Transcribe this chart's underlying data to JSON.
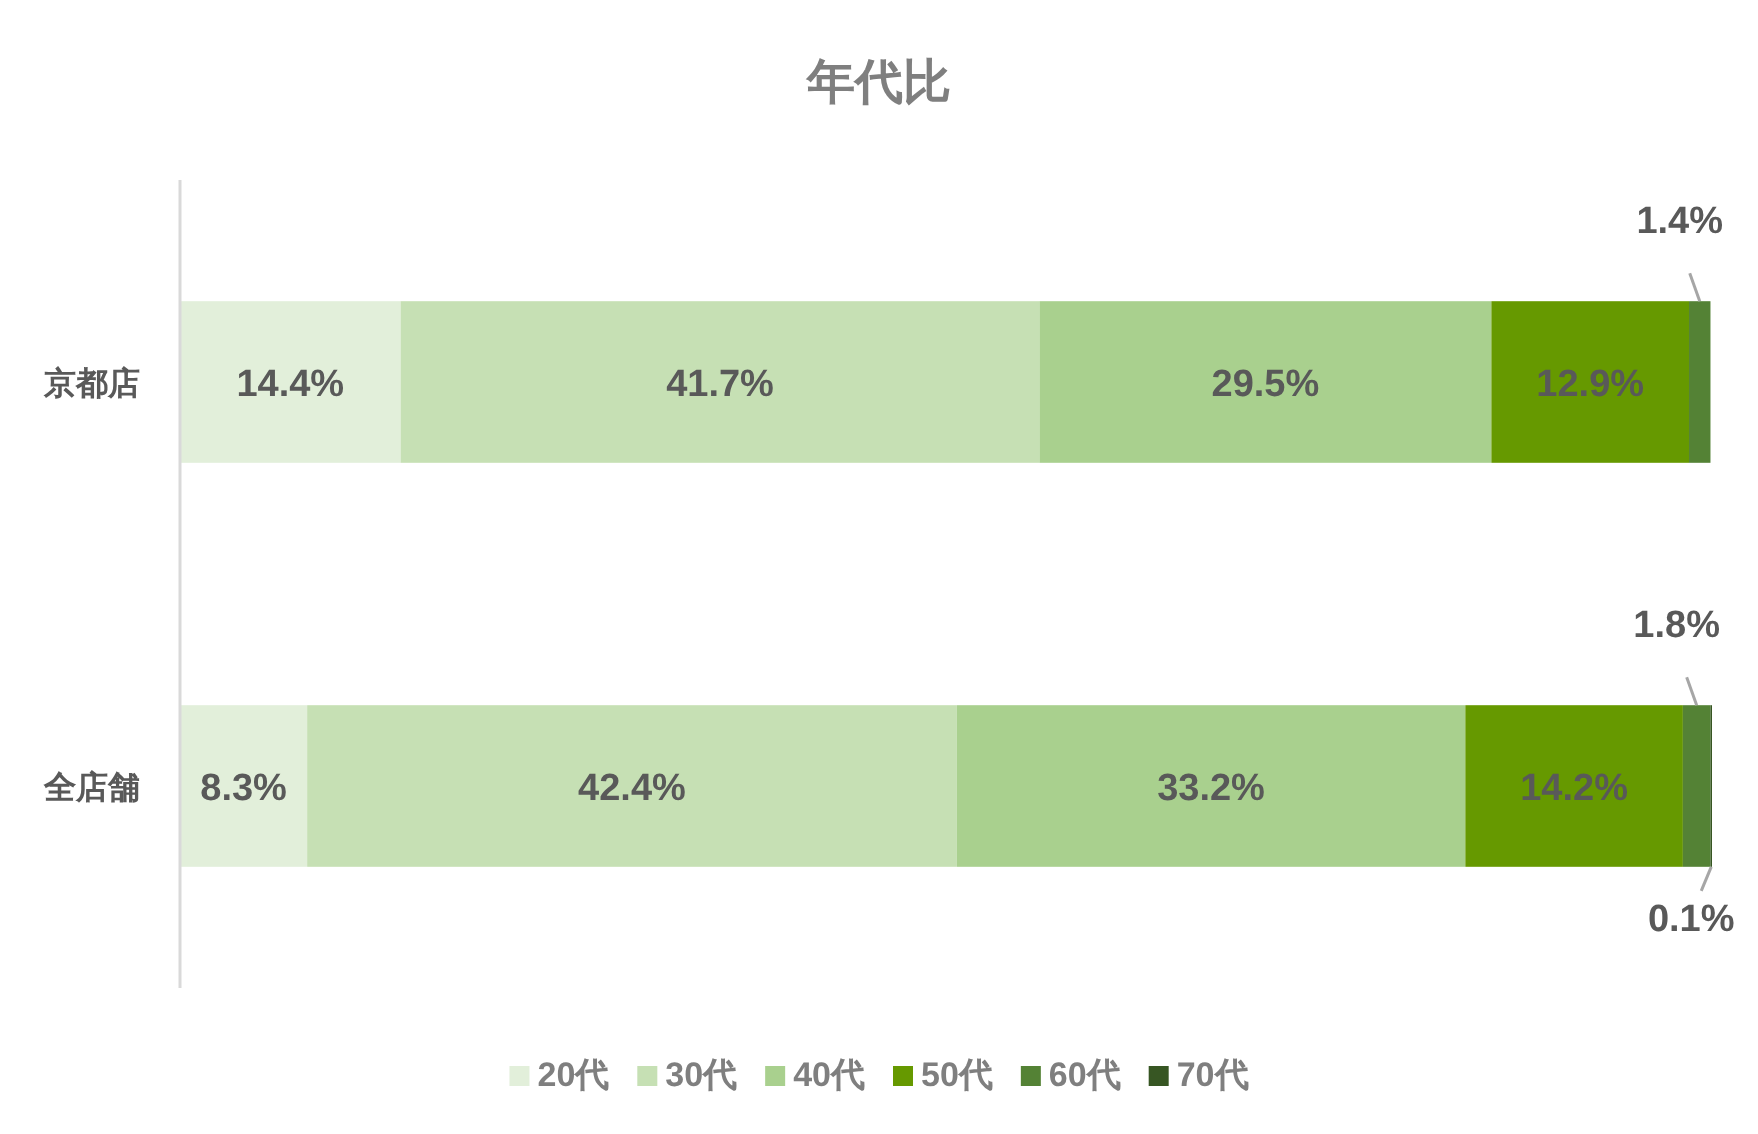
{
  "chart_data": {
    "type": "bar",
    "orientation": "horizontal",
    "stacked": true,
    "title": "年代比",
    "categories": [
      "京都店",
      "全店舗"
    ],
    "series": [
      {
        "name": "20代",
        "color": "#e2efda",
        "values": [
          14.4,
          8.3
        ],
        "value_labels": [
          "14.4%",
          "8.3%"
        ]
      },
      {
        "name": "30代",
        "color": "#c6e0b4",
        "values": [
          41.7,
          42.4
        ],
        "value_labels": [
          "41.7%",
          "42.4%"
        ]
      },
      {
        "name": "40代",
        "color": "#a9d08e",
        "values": [
          29.5,
          33.2
        ],
        "value_labels": [
          "29.5%",
          "33.2%"
        ]
      },
      {
        "name": "50代",
        "color": "#669900",
        "values": [
          12.9,
          14.2
        ],
        "value_labels": [
          "12.9%",
          "14.2%"
        ]
      },
      {
        "name": "60代",
        "color": "#548235",
        "values": [
          1.4,
          1.8
        ],
        "value_labels": [
          "1.4%",
          "1.8%"
        ]
      },
      {
        "name": "70代",
        "color": "#375623",
        "values": [
          null,
          0.1
        ],
        "value_labels": [
          null,
          "0.1%"
        ]
      }
    ],
    "legend": "bottom"
  }
}
